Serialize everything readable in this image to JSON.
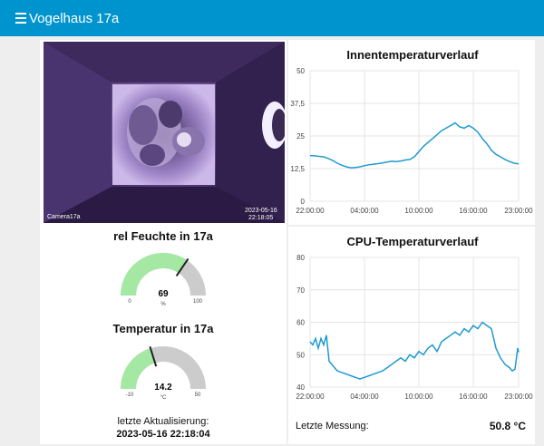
{
  "header": {
    "title": "Vogelhaus 17a",
    "menu_icon": "hamburger-menu-icon"
  },
  "camera": {
    "label": "Camera17a",
    "timestamp_date": "2023-05-16",
    "timestamp_time": "22:18:05"
  },
  "humidity": {
    "title": "rel Feuchte in 17a",
    "value": 69,
    "unit": "%",
    "min": 0,
    "max": 100,
    "color": "#a4e8a4"
  },
  "temperature": {
    "title": "Temperatur in 17a",
    "value": 14.2,
    "value_text": "14.2",
    "unit": "°C",
    "min": -10,
    "max": 50,
    "color": "#a4e8a4"
  },
  "update": {
    "label": "letzte Aktualisierung:",
    "value": "2023-05-16 22:18:04"
  },
  "measurement": {
    "label": "Letzte Messung:",
    "value": "50.8 °C"
  },
  "chart_data": [
    {
      "type": "line",
      "title": "Innentemperaturverlauf",
      "x_tick_labels": [
        "22:00:00",
        "04:00:00",
        "10:00:00",
        "16:00:00",
        "23:00:00"
      ],
      "y_tick_labels": [
        "50",
        "37,5",
        "25",
        "12,5",
        "0"
      ],
      "ylim": [
        0,
        50
      ],
      "series": [
        {
          "color": "#1f9bcf",
          "x_hours": [
            0,
            0.5,
            1,
            1.5,
            2,
            2.5,
            3,
            3.5,
            4,
            4.5,
            5,
            5.5,
            6,
            6.5,
            7,
            7.5,
            8,
            8.5,
            9,
            9.5,
            10,
            10.5,
            11,
            11.5,
            12,
            12.5,
            13,
            13.5,
            14,
            14.5,
            15,
            15.5,
            16,
            16.5,
            17,
            17.5,
            18,
            18.5,
            19,
            19.5,
            20,
            20.5,
            21,
            21.5,
            22,
            22.5,
            23
          ],
          "values": [
            17.5,
            17.4,
            17.2,
            17,
            16.4,
            15.6,
            14.6,
            13.8,
            13.2,
            12.8,
            12.9,
            13.2,
            13.6,
            14,
            14.2,
            14.4,
            14.7,
            15,
            15.3,
            15.2,
            15.4,
            15.8,
            16,
            17,
            19,
            21,
            22.5,
            24,
            25.5,
            27,
            28,
            29,
            30,
            28.5,
            28,
            29,
            28,
            26.5,
            24,
            22,
            19.5,
            18,
            17,
            16,
            15.2,
            14.6,
            14.3
          ]
        }
      ]
    },
    {
      "type": "line",
      "title": "CPU-Temperaturverlauf",
      "x_tick_labels": [
        "22:00:00",
        "04:00:00",
        "10:00:00",
        "16:00:00",
        "23:00:00"
      ],
      "y_tick_labels": [
        "80",
        "70",
        "60",
        "50",
        "40"
      ],
      "ylim": [
        40,
        80
      ],
      "series": [
        {
          "color": "#1f9bcf",
          "x_hours": [
            0,
            0.3,
            0.6,
            0.9,
            1.2,
            1.5,
            1.8,
            2.1,
            2.4,
            2.7,
            3,
            3.5,
            4,
            4.5,
            5,
            5.5,
            6,
            6.5,
            7,
            7.5,
            8,
            8.5,
            9,
            9.5,
            10,
            10.5,
            11,
            11.5,
            12,
            12.5,
            13,
            13.5,
            14,
            14.5,
            15,
            15.5,
            16,
            16.5,
            17,
            17.5,
            18,
            18.5,
            19,
            19.5,
            20,
            20.5,
            21,
            21.5,
            22,
            22.3,
            22.6,
            22.9,
            23
          ],
          "values": [
            54,
            53,
            55,
            52,
            55,
            53,
            56,
            48,
            47,
            46,
            45,
            44.5,
            44,
            43.5,
            43,
            42.5,
            43,
            43.5,
            44,
            44.5,
            45,
            46,
            47,
            48,
            49,
            48,
            50,
            49,
            51,
            50,
            52,
            53,
            51,
            54,
            55,
            56,
            57,
            56,
            58,
            57,
            59,
            58,
            60,
            59,
            58,
            52,
            49,
            47,
            46,
            45,
            45.5,
            52,
            50.8
          ]
        }
      ]
    }
  ]
}
